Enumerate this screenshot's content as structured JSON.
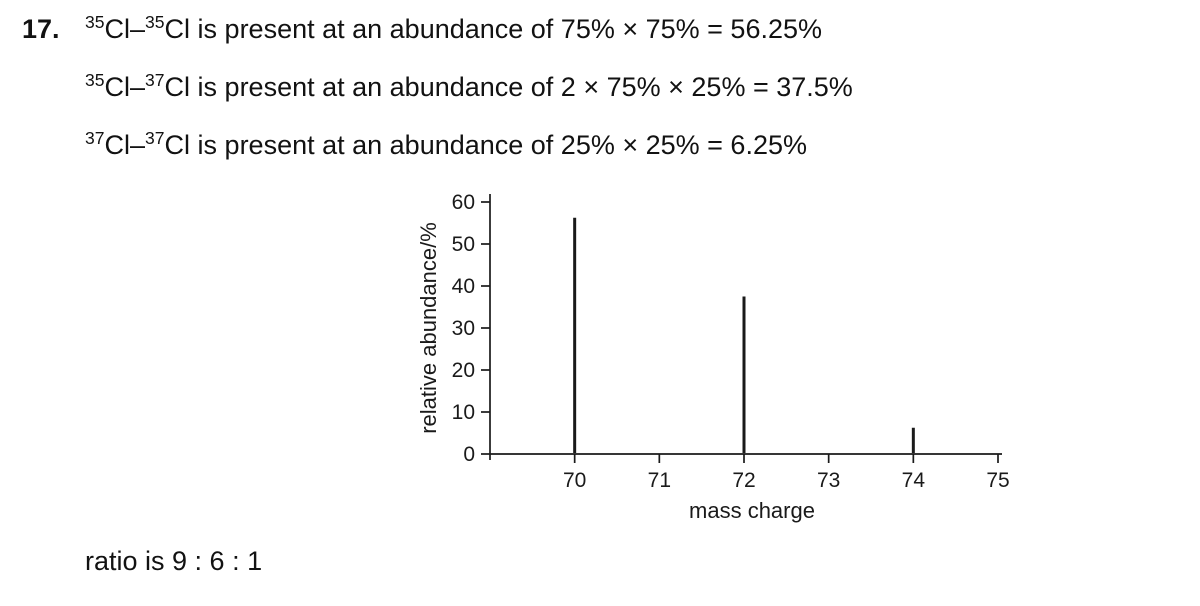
{
  "page": {
    "question_number": "17.",
    "ratio_text": "ratio is 9 : 6 : 1"
  },
  "solution_lines": [
    {
      "sup_a": "35",
      "seg_a": "Cl–",
      "sup_b": "35",
      "seg_b": "Cl",
      "rest": " is present at an abundance of 75% × 75% = 56.25%"
    },
    {
      "sup_a": "35",
      "seg_a": "Cl–",
      "sup_b": "37",
      "seg_b": "Cl",
      "rest": " is present at an abundance of 2 × 75% × 25% = 37.5%"
    },
    {
      "sup_a": "37",
      "seg_a": "Cl–",
      "sup_b": "37",
      "seg_b": "Cl",
      "rest": " is present at an abundance of 25% × 25% = 6.25%"
    }
  ],
  "chart_data": {
    "type": "bar",
    "subtype": "mass-spectrum-line-peaks",
    "x": [
      70,
      72,
      74
    ],
    "values": [
      56.25,
      37.5,
      6.25
    ],
    "title": "",
    "xlabel": "mass charge",
    "ylabel": "relative abundance/%",
    "x_ticks": [
      70,
      71,
      72,
      73,
      74,
      75
    ],
    "y_ticks": [
      0,
      10,
      20,
      30,
      40,
      50,
      60
    ],
    "xlim": [
      69,
      75
    ],
    "ylim": [
      0,
      60
    ],
    "grid": false,
    "legend": false,
    "line_color": "#1a1a1a",
    "text_color": "#1a1a1a"
  }
}
